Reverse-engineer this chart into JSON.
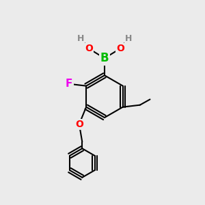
{
  "background_color": "#ebebeb",
  "bond_color": "#000000",
  "bond_width": 1.5,
  "atom_colors": {
    "B": "#00bb00",
    "O": "#ff0000",
    "F": "#ee00ee",
    "H": "#888888",
    "C": "#000000"
  },
  "figsize": [
    3.0,
    3.0
  ],
  "dpi": 100
}
